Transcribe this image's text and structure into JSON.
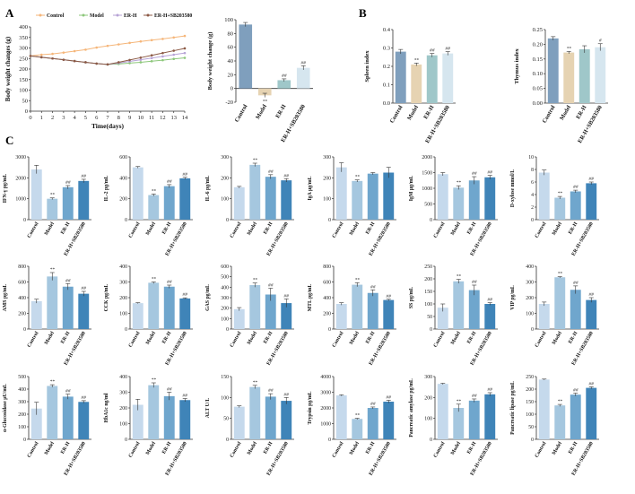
{
  "panel_labels": [
    "A",
    "B",
    "C"
  ],
  "groups": [
    "Control",
    "Model",
    "ER-H",
    "ER-H+SB203580"
  ],
  "colors": {
    "control": "#7f9fbd",
    "model": "#e6d3b2",
    "erh": "#9fc7c9",
    "ersb": "#d6e6ef",
    "c_control": "#c5d9ec",
    "c_model": "#a5c7df",
    "c_erh": "#6fa6cd",
    "c_ersb": "#3f84b8",
    "line_control": "#f5b67a",
    "line_model": "#8dc77b",
    "line_erh": "#b7a3d6",
    "line_ersb": "#8c5a46",
    "axis": "#333333",
    "sig": "#333333"
  },
  "chart_data": [
    {
      "id": "A1",
      "type": "line",
      "title": "",
      "xlabel": "Time(days)",
      "ylabel": "Body weight changes (g)",
      "x": [
        0,
        1,
        2,
        3,
        4,
        5,
        6,
        7,
        8,
        9,
        10,
        11,
        12,
        13,
        14
      ],
      "xticks": [
        "0",
        "1",
        "2",
        "3",
        "4",
        "5",
        "6",
        "7",
        "8",
        "9",
        "10",
        "11",
        "12",
        "13",
        "14"
      ],
      "ylim": [
        0,
        400
      ],
      "yticks": [
        "0",
        "50",
        "100",
        "150",
        "200",
        "250",
        "300",
        "350",
        "400"
      ],
      "legend": "top",
      "series": [
        {
          "name": "Control",
          "color_key": "line_control",
          "values": [
            262,
            268,
            272,
            278,
            285,
            292,
            302,
            310,
            317,
            324,
            331,
            337,
            343,
            350,
            357
          ]
        },
        {
          "name": "Model",
          "color_key": "line_model",
          "values": [
            262,
            256,
            250,
            244,
            238,
            232,
            226,
            222,
            224,
            228,
            232,
            237,
            242,
            248,
            253
          ]
        },
        {
          "name": "ER-H",
          "color_key": "line_erh",
          "values": [
            262,
            256,
            250,
            244,
            238,
            232,
            226,
            222,
            228,
            236,
            244,
            252,
            260,
            268,
            276
          ]
        },
        {
          "name": "ER-H+SB203580",
          "color_key": "line_ersb",
          "values": [
            262,
            256,
            250,
            244,
            238,
            232,
            226,
            222,
            232,
            243,
            254,
            265,
            276,
            287,
            298
          ]
        }
      ]
    },
    {
      "id": "A2",
      "type": "bar",
      "title": "",
      "xlabel": "",
      "ylabel": "Body weight change (g)",
      "categories": [
        "Control",
        "Model",
        "ER-H",
        "ER-H+SB203580"
      ],
      "values": [
        93,
        -10,
        12,
        30
      ],
      "errors": [
        3,
        3,
        2,
        3
      ],
      "sig": [
        "",
        "**",
        "##",
        "##"
      ],
      "ylim": [
        -20,
        100
      ],
      "yticks": [
        "-20",
        "0",
        "20",
        "40",
        "60",
        "80",
        "100"
      ],
      "palette": "A"
    },
    {
      "id": "B1",
      "type": "bar",
      "title": "",
      "xlabel": "",
      "ylabel": "Spleen index",
      "categories": [
        "Control",
        "Model",
        "ER-H",
        "ER-H+SB203580"
      ],
      "values": [
        0.28,
        0.21,
        0.26,
        0.27
      ],
      "errors": [
        0.012,
        0.008,
        0.01,
        0.01
      ],
      "sig": [
        "",
        "**",
        "##",
        "##"
      ],
      "ylim": [
        0,
        0.4
      ],
      "yticks": [
        "0.0",
        "0.1",
        "0.2",
        "0.3",
        "0.4"
      ],
      "palette": "B"
    },
    {
      "id": "B2",
      "type": "bar",
      "title": "",
      "xlabel": "",
      "ylabel": "Thymus index",
      "categories": [
        "Control",
        "Model",
        "ER-H",
        "ER-H+SB203580"
      ],
      "values": [
        0.22,
        0.172,
        0.183,
        0.19
      ],
      "errors": [
        0.006,
        0.004,
        0.012,
        0.012
      ],
      "sig": [
        "",
        "**",
        "",
        "#"
      ],
      "ylim": [
        0,
        0.25
      ],
      "yticks": [
        "0.00",
        "0.05",
        "0.10",
        "0.15",
        "0.20",
        "0.25"
      ],
      "palette": "B"
    },
    {
      "id": "C1",
      "type": "bar",
      "ylabel": "IFN-γ pg/mL",
      "categories": [
        "Control",
        "Model",
        "ER-H",
        "ER-H+SB203580"
      ],
      "values": [
        2400,
        1000,
        1550,
        1850
      ],
      "errors": [
        200,
        40,
        80,
        80
      ],
      "sig": [
        "",
        "**",
        "##",
        "##"
      ],
      "ylim": [
        0,
        3000
      ],
      "yticks": [
        "0",
        "1000",
        "2000",
        "3000"
      ],
      "palette": "C"
    },
    {
      "id": "C2",
      "type": "bar",
      "ylabel": "IL-2 pg/mL",
      "categories": [
        "Control",
        "Model",
        "ER-H",
        "ER-H+SB203580"
      ],
      "values": [
        500,
        235,
        320,
        395
      ],
      "errors": [
        8,
        10,
        15,
        10
      ],
      "sig": [
        "",
        "**",
        "##",
        "##"
      ],
      "ylim": [
        0,
        600
      ],
      "yticks": [
        "0",
        "200",
        "400",
        "600"
      ],
      "palette": "C"
    },
    {
      "id": "C3",
      "type": "bar",
      "ylabel": "IL-6 pg/mL",
      "categories": [
        "Control",
        "Model",
        "ER-H",
        "ER-H+SB203580"
      ],
      "values": [
        155,
        262,
        205,
        188
      ],
      "errors": [
        4,
        8,
        10,
        8
      ],
      "sig": [
        "",
        "**",
        "##",
        "##"
      ],
      "ylim": [
        0,
        300
      ],
      "yticks": [
        "0",
        "100",
        "200",
        "300"
      ],
      "palette": "C"
    },
    {
      "id": "C4",
      "type": "bar",
      "ylabel": "IgA μg/mL",
      "categories": [
        "Control",
        "Model",
        "ER-H",
        "ER-H+SB203580"
      ],
      "values": [
        250,
        185,
        220,
        225
      ],
      "errors": [
        22,
        5,
        5,
        25
      ],
      "sig": [
        "",
        "**",
        "",
        ""
      ],
      "ylim": [
        0,
        300
      ],
      "yticks": [
        "0",
        "100",
        "200",
        "300"
      ],
      "palette": "C"
    },
    {
      "id": "C5",
      "type": "bar",
      "ylabel": "IgM μg/mL",
      "categories": [
        "Control",
        "Model",
        "ER-H",
        "ER-H+SB203580"
      ],
      "values": [
        1450,
        1020,
        1250,
        1350
      ],
      "errors": [
        50,
        60,
        120,
        60
      ],
      "sig": [
        "",
        "**",
        "##",
        "##"
      ],
      "ylim": [
        0,
        2000
      ],
      "yticks": [
        "0",
        "500",
        "1000",
        "1500",
        "2000"
      ],
      "palette": "C"
    },
    {
      "id": "C6",
      "type": "bar",
      "ylabel": "D-xylose mmol/L",
      "categories": [
        "Control",
        "Model",
        "ER-H",
        "ER-H+SB203580"
      ],
      "values": [
        7.5,
        3.5,
        4.5,
        5.8
      ],
      "errors": [
        0.4,
        0.2,
        0.2,
        0.2
      ],
      "sig": [
        "",
        "**",
        "##",
        "##"
      ],
      "ylim": [
        0,
        10
      ],
      "yticks": [
        "0",
        "2",
        "4",
        "6",
        "8",
        "10"
      ],
      "palette": "C"
    },
    {
      "id": "C7",
      "type": "bar",
      "ylabel": "AMS pg/mL",
      "categories": [
        "Control",
        "Model",
        "ER-H",
        "ER-H+SB203580"
      ],
      "values": [
        355,
        670,
        540,
        450
      ],
      "errors": [
        25,
        50,
        40,
        30
      ],
      "sig": [
        "",
        "**",
        "##",
        "##"
      ],
      "ylim": [
        0,
        800
      ],
      "yticks": [
        "0",
        "200",
        "400",
        "600",
        "800"
      ],
      "palette": "C"
    },
    {
      "id": "C8",
      "type": "bar",
      "ylabel": "CCK pg/mL",
      "categories": [
        "Control",
        "Model",
        "ER-H",
        "ER-H+SB203580"
      ],
      "values": [
        165,
        295,
        270,
        195
      ],
      "errors": [
        3,
        5,
        10,
        4
      ],
      "sig": [
        "",
        "**",
        "##",
        "##"
      ],
      "ylim": [
        0,
        400
      ],
      "yticks": [
        "0",
        "100",
        "200",
        "300",
        "400"
      ],
      "palette": "C"
    },
    {
      "id": "C9",
      "type": "bar",
      "ylabel": "GAS pg/mL",
      "categories": [
        "Control",
        "Model",
        "ER-H",
        "ER-H+SB203580"
      ],
      "values": [
        190,
        420,
        330,
        248
      ],
      "errors": [
        15,
        20,
        60,
        40
      ],
      "sig": [
        "",
        "**",
        "##",
        "##"
      ],
      "ylim": [
        0,
        600
      ],
      "yticks": [
        "0",
        "100",
        "200",
        "300",
        "400",
        "500",
        "600"
      ],
      "palette": "C"
    },
    {
      "id": "C10",
      "type": "bar",
      "ylabel": "MTL pg/mL",
      "categories": [
        "Control",
        "Model",
        "ER-H",
        "ER-H+SB203580"
      ],
      "values": [
        320,
        565,
        460,
        370
      ],
      "errors": [
        15,
        25,
        40,
        10
      ],
      "sig": [
        "",
        "**",
        "##",
        "##"
      ],
      "ylim": [
        0,
        800
      ],
      "yticks": [
        "0",
        "200",
        "400",
        "600",
        "800"
      ],
      "palette": "C"
    },
    {
      "id": "C11",
      "type": "bar",
      "ylabel": "SS pg/mL",
      "categories": [
        "Control",
        "Model",
        "ER-H",
        "ER-H+SB203580"
      ],
      "values": [
        85,
        190,
        155,
        100
      ],
      "errors": [
        15,
        8,
        20,
        5
      ],
      "sig": [
        "",
        "**",
        "##",
        "##"
      ],
      "ylim": [
        0,
        250
      ],
      "yticks": [
        "0",
        "50",
        "100",
        "150",
        "200",
        "250"
      ],
      "palette": "C"
    },
    {
      "id": "C12",
      "type": "bar",
      "ylabel": "VIP pg/mL",
      "categories": [
        "Control",
        "Model",
        "ER-H",
        "ER-H+SB203580"
      ],
      "values": [
        160,
        330,
        250,
        185
      ],
      "errors": [
        12,
        4,
        25,
        15
      ],
      "sig": [
        "",
        "**",
        "##",
        "##"
      ],
      "ylim": [
        0,
        400
      ],
      "yticks": [
        "0",
        "100",
        "200",
        "300",
        "400"
      ],
      "palette": "C"
    },
    {
      "id": "C13",
      "type": "bar",
      "ylabel": "α-Glucosidase μU/mL",
      "categories": [
        "Control",
        "Model",
        "ER-H",
        "ER-H+SB203580"
      ],
      "values": [
        245,
        425,
        340,
        298
      ],
      "errors": [
        50,
        10,
        20,
        10
      ],
      "sig": [
        "",
        "**",
        "##",
        "##"
      ],
      "ylim": [
        0,
        500
      ],
      "yticks": [
        "0",
        "100",
        "200",
        "300",
        "400",
        "500"
      ],
      "palette": "C"
    },
    {
      "id": "C14",
      "type": "bar",
      "ylabel": "HbA1c ng/ml",
      "categories": [
        "Control",
        "Model",
        "ER-H",
        "ER-H+SB203580"
      ],
      "values": [
        220,
        345,
        275,
        250
      ],
      "errors": [
        35,
        15,
        25,
        10
      ],
      "sig": [
        "",
        "**",
        "##",
        "##"
      ],
      "ylim": [
        0,
        400
      ],
      "yticks": [
        "0",
        "100",
        "200",
        "300",
        "400"
      ],
      "palette": "C"
    },
    {
      "id": "C15",
      "type": "bar",
      "ylabel": "ALT U/L",
      "categories": [
        "Control",
        "Model",
        "ER-H",
        "ER-H+SB203580"
      ],
      "values": [
        78,
        125,
        102,
        92
      ],
      "errors": [
        2,
        4,
        7,
        8
      ],
      "sig": [
        "",
        "**",
        "##",
        "##"
      ],
      "ylim": [
        0,
        150
      ],
      "yticks": [
        "0",
        "50",
        "100",
        "150"
      ],
      "palette": "C"
    },
    {
      "id": "C16",
      "type": "bar",
      "ylabel": "Trypsin pg/mL",
      "categories": [
        "Control",
        "Model",
        "ER-H",
        "ER-H+SB203580"
      ],
      "values": [
        2800,
        1300,
        2000,
        2400
      ],
      "errors": [
        40,
        40,
        60,
        90
      ],
      "sig": [
        "",
        "**",
        "##",
        "##"
      ],
      "ylim": [
        0,
        4000
      ],
      "yticks": [
        "0",
        "1000",
        "2000",
        "3000",
        "4000"
      ],
      "palette": "C"
    },
    {
      "id": "C17",
      "type": "bar",
      "ylabel": "Pancreatic amylase pg/mL",
      "categories": [
        "Control",
        "Model",
        "ER-H",
        "ER-H+SB203580"
      ],
      "values": [
        265,
        150,
        185,
        215
      ],
      "errors": [
        3,
        18,
        8,
        8
      ],
      "sig": [
        "",
        "**",
        "##",
        "##"
      ],
      "ylim": [
        0,
        300
      ],
      "yticks": [
        "0",
        "100",
        "200",
        "300"
      ],
      "palette": "C"
    },
    {
      "id": "C18",
      "type": "bar",
      "ylabel": "Pancreatic lipase pg/mL",
      "categories": [
        "Control",
        "Model",
        "ER-H",
        "ER-H+SB203580"
      ],
      "values": [
        238,
        135,
        178,
        205
      ],
      "errors": [
        2,
        4,
        6,
        4
      ],
      "sig": [
        "",
        "**",
        "##",
        "##"
      ],
      "ylim": [
        0,
        250
      ],
      "yticks": [
        "0",
        "50",
        "100",
        "150",
        "200",
        "250"
      ],
      "palette": "C"
    }
  ]
}
